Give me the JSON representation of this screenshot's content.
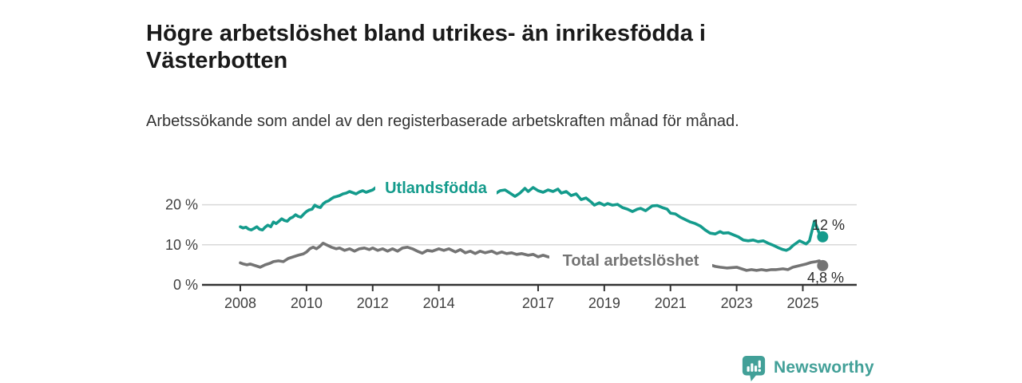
{
  "header": {
    "title": "Högre arbetslöshet bland utrikes- än inrikesfödda i Västerbotten",
    "subtitle": "Arbetssökande som andel av den registerbaserade arbetskraften månad för månad."
  },
  "branding": {
    "name": "Newsworthy",
    "logo_icon": "chart-speech-bubble-icon",
    "brand_color": "#42a098"
  },
  "chart_data": {
    "type": "line",
    "title": "",
    "xlabel": "",
    "ylabel": "",
    "unit": "%",
    "grid": "horizontal",
    "x_axis": {
      "range": [
        2007.8,
        2026.6
      ],
      "ticks": [
        2008,
        2010,
        2012,
        2014,
        2017,
        2019,
        2021,
        2023,
        2025
      ]
    },
    "y_axis": {
      "range": [
        0,
        28
      ],
      "ticks": [
        0,
        10,
        20
      ],
      "tick_suffix": " %"
    },
    "colors": {
      "gridline": "#d8d8d8",
      "axis": "#333333",
      "axis_text": "#404040",
      "annotation_text": "#2b2b2b"
    },
    "series": [
      {
        "name": "Utlandsfödda",
        "color": "#149b8c",
        "end_label": "12 %",
        "end_value": 12,
        "points": [
          [
            2008.0,
            14.5
          ],
          [
            2008.08,
            14.2
          ],
          [
            2008.17,
            14.4
          ],
          [
            2008.25,
            13.9
          ],
          [
            2008.33,
            13.7
          ],
          [
            2008.42,
            14.1
          ],
          [
            2008.5,
            14.5
          ],
          [
            2008.58,
            13.9
          ],
          [
            2008.67,
            13.7
          ],
          [
            2008.75,
            14.4
          ],
          [
            2008.83,
            14.9
          ],
          [
            2008.92,
            14.5
          ],
          [
            2009.0,
            15.7
          ],
          [
            2009.08,
            15.3
          ],
          [
            2009.17,
            15.9
          ],
          [
            2009.25,
            16.5
          ],
          [
            2009.33,
            16.1
          ],
          [
            2009.42,
            15.9
          ],
          [
            2009.5,
            16.6
          ],
          [
            2009.58,
            16.9
          ],
          [
            2009.67,
            17.5
          ],
          [
            2009.75,
            17.1
          ],
          [
            2009.83,
            16.9
          ],
          [
            2009.92,
            17.7
          ],
          [
            2010.0,
            18.3
          ],
          [
            2010.08,
            18.7
          ],
          [
            2010.17,
            18.9
          ],
          [
            2010.25,
            19.9
          ],
          [
            2010.33,
            19.5
          ],
          [
            2010.42,
            19.3
          ],
          [
            2010.5,
            20.2
          ],
          [
            2010.58,
            20.7
          ],
          [
            2010.67,
            21.0
          ],
          [
            2010.75,
            21.5
          ],
          [
            2010.83,
            21.9
          ],
          [
            2010.92,
            22.1
          ],
          [
            2011.0,
            22.3
          ],
          [
            2011.1,
            22.7
          ],
          [
            2011.2,
            22.9
          ],
          [
            2011.3,
            23.3
          ],
          [
            2011.4,
            23.0
          ],
          [
            2011.5,
            22.7
          ],
          [
            2011.6,
            23.2
          ],
          [
            2011.7,
            23.5
          ],
          [
            2011.8,
            23.1
          ],
          [
            2011.9,
            23.4
          ],
          [
            2012.0,
            23.7
          ],
          [
            2012.1,
            24.3
          ],
          [
            2012.25,
            24.6
          ],
          [
            2012.4,
            24.2
          ],
          [
            2012.55,
            23.9
          ],
          [
            2012.7,
            24.3
          ],
          [
            2012.85,
            24.7
          ],
          [
            2013.0,
            24.9
          ],
          [
            2013.15,
            24.4
          ],
          [
            2013.3,
            23.9
          ],
          [
            2013.45,
            24.3
          ],
          [
            2013.6,
            23.8
          ],
          [
            2013.75,
            24.1
          ],
          [
            2013.9,
            24.5
          ],
          [
            2014.05,
            24.0
          ],
          [
            2014.2,
            23.6
          ],
          [
            2014.35,
            24.0
          ],
          [
            2014.5,
            23.5
          ],
          [
            2014.65,
            23.9
          ],
          [
            2014.8,
            23.3
          ],
          [
            2014.95,
            23.7
          ],
          [
            2015.1,
            23.2
          ],
          [
            2015.25,
            22.9
          ],
          [
            2015.4,
            23.3
          ],
          [
            2015.55,
            22.8
          ],
          [
            2015.7,
            22.7
          ],
          [
            2015.85,
            23.5
          ],
          [
            2016.0,
            23.7
          ],
          [
            2016.15,
            22.9
          ],
          [
            2016.3,
            22.1
          ],
          [
            2016.45,
            22.9
          ],
          [
            2016.6,
            24.1
          ],
          [
            2016.7,
            23.3
          ],
          [
            2016.85,
            24.3
          ],
          [
            2017.0,
            23.5
          ],
          [
            2017.15,
            23.1
          ],
          [
            2017.3,
            23.7
          ],
          [
            2017.45,
            23.3
          ],
          [
            2017.6,
            23.9
          ],
          [
            2017.7,
            22.9
          ],
          [
            2017.85,
            23.3
          ],
          [
            2018.0,
            22.3
          ],
          [
            2018.15,
            22.7
          ],
          [
            2018.3,
            21.3
          ],
          [
            2018.45,
            21.7
          ],
          [
            2018.6,
            20.7
          ],
          [
            2018.7,
            19.9
          ],
          [
            2018.85,
            20.5
          ],
          [
            2019.0,
            19.9
          ],
          [
            2019.1,
            20.3
          ],
          [
            2019.25,
            19.9
          ],
          [
            2019.4,
            20.1
          ],
          [
            2019.55,
            19.3
          ],
          [
            2019.7,
            18.9
          ],
          [
            2019.85,
            18.3
          ],
          [
            2020.0,
            18.9
          ],
          [
            2020.1,
            19.1
          ],
          [
            2020.25,
            18.5
          ],
          [
            2020.45,
            19.7
          ],
          [
            2020.6,
            19.8
          ],
          [
            2020.75,
            19.3
          ],
          [
            2020.9,
            18.9
          ],
          [
            2021.0,
            17.9
          ],
          [
            2021.15,
            17.7
          ],
          [
            2021.3,
            16.9
          ],
          [
            2021.45,
            16.3
          ],
          [
            2021.6,
            15.7
          ],
          [
            2021.75,
            15.3
          ],
          [
            2021.9,
            14.7
          ],
          [
            2022.05,
            13.7
          ],
          [
            2022.2,
            12.9
          ],
          [
            2022.35,
            12.7
          ],
          [
            2022.5,
            13.3
          ],
          [
            2022.6,
            12.9
          ],
          [
            2022.75,
            13.0
          ],
          [
            2022.9,
            12.5
          ],
          [
            2023.05,
            12.0
          ],
          [
            2023.2,
            11.2
          ],
          [
            2023.35,
            11.0
          ],
          [
            2023.5,
            11.2
          ],
          [
            2023.65,
            10.8
          ],
          [
            2023.8,
            11.0
          ],
          [
            2023.95,
            10.4
          ],
          [
            2024.1,
            9.9
          ],
          [
            2024.25,
            9.3
          ],
          [
            2024.4,
            8.8
          ],
          [
            2024.5,
            8.6
          ],
          [
            2024.6,
            9.0
          ],
          [
            2024.7,
            9.8
          ],
          [
            2024.8,
            10.4
          ],
          [
            2024.9,
            11.0
          ],
          [
            2025.0,
            10.6
          ],
          [
            2025.1,
            10.2
          ],
          [
            2025.2,
            11.0
          ],
          [
            2025.35,
            15.9
          ],
          [
            2025.5,
            12.8
          ],
          [
            2025.6,
            12.0
          ]
        ]
      },
      {
        "name": "Total arbetslöshet",
        "color": "#747474",
        "end_label": "4,8 %",
        "end_value": 4.8,
        "points": [
          [
            2008.0,
            5.5
          ],
          [
            2008.1,
            5.2
          ],
          [
            2008.2,
            5.0
          ],
          [
            2008.3,
            5.2
          ],
          [
            2008.45,
            4.8
          ],
          [
            2008.6,
            4.4
          ],
          [
            2008.75,
            5.0
          ],
          [
            2008.9,
            5.4
          ],
          [
            2009.0,
            5.8
          ],
          [
            2009.15,
            6.0
          ],
          [
            2009.3,
            5.8
          ],
          [
            2009.45,
            6.6
          ],
          [
            2009.6,
            7.0
          ],
          [
            2009.75,
            7.4
          ],
          [
            2009.9,
            7.7
          ],
          [
            2010.0,
            8.2
          ],
          [
            2010.1,
            9.0
          ],
          [
            2010.2,
            9.4
          ],
          [
            2010.3,
            9.0
          ],
          [
            2010.4,
            9.6
          ],
          [
            2010.5,
            10.4
          ],
          [
            2010.6,
            10.0
          ],
          [
            2010.75,
            9.4
          ],
          [
            2010.9,
            9.0
          ],
          [
            2011.0,
            9.2
          ],
          [
            2011.15,
            8.6
          ],
          [
            2011.3,
            9.0
          ],
          [
            2011.45,
            8.4
          ],
          [
            2011.6,
            9.0
          ],
          [
            2011.75,
            9.2
          ],
          [
            2011.9,
            8.8
          ],
          [
            2012.0,
            9.2
          ],
          [
            2012.15,
            8.6
          ],
          [
            2012.3,
            9.0
          ],
          [
            2012.45,
            8.4
          ],
          [
            2012.6,
            9.0
          ],
          [
            2012.75,
            8.4
          ],
          [
            2012.9,
            9.2
          ],
          [
            2013.05,
            9.4
          ],
          [
            2013.2,
            9.0
          ],
          [
            2013.35,
            8.4
          ],
          [
            2013.5,
            7.9
          ],
          [
            2013.65,
            8.6
          ],
          [
            2013.8,
            8.4
          ],
          [
            2014.0,
            9.0
          ],
          [
            2014.15,
            8.6
          ],
          [
            2014.3,
            9.0
          ],
          [
            2014.5,
            8.2
          ],
          [
            2014.65,
            8.8
          ],
          [
            2014.8,
            8.0
          ],
          [
            2014.95,
            8.4
          ],
          [
            2015.1,
            7.8
          ],
          [
            2015.25,
            8.4
          ],
          [
            2015.4,
            8.0
          ],
          [
            2015.6,
            8.4
          ],
          [
            2015.75,
            7.8
          ],
          [
            2015.9,
            8.2
          ],
          [
            2016.05,
            7.8
          ],
          [
            2016.2,
            8.0
          ],
          [
            2016.35,
            7.6
          ],
          [
            2016.5,
            7.8
          ],
          [
            2016.7,
            7.4
          ],
          [
            2016.85,
            7.6
          ],
          [
            2017.0,
            7.0
          ],
          [
            2017.15,
            7.4
          ],
          [
            2017.3,
            7.0
          ],
          [
            2017.45,
            6.8
          ],
          [
            2017.7,
            6.6
          ],
          [
            2018.0,
            6.4
          ],
          [
            2018.4,
            6.2
          ],
          [
            2018.8,
            6.1
          ],
          [
            2019.2,
            6.0
          ],
          [
            2019.6,
            6.2
          ],
          [
            2020.0,
            6.6
          ],
          [
            2020.4,
            7.2
          ],
          [
            2020.7,
            7.0
          ],
          [
            2021.0,
            6.6
          ],
          [
            2021.4,
            6.0
          ],
          [
            2021.8,
            5.5
          ],
          [
            2022.0,
            5.2
          ],
          [
            2022.2,
            5.0
          ],
          [
            2022.35,
            4.6
          ],
          [
            2022.5,
            4.4
          ],
          [
            2022.7,
            4.2
          ],
          [
            2023.0,
            4.4
          ],
          [
            2023.15,
            4.0
          ],
          [
            2023.3,
            3.6
          ],
          [
            2023.45,
            3.8
          ],
          [
            2023.6,
            3.6
          ],
          [
            2023.75,
            3.8
          ],
          [
            2023.9,
            3.6
          ],
          [
            2024.05,
            3.8
          ],
          [
            2024.2,
            3.8
          ],
          [
            2024.4,
            4.0
          ],
          [
            2024.55,
            3.8
          ],
          [
            2024.7,
            4.4
          ],
          [
            2024.9,
            4.8
          ],
          [
            2025.1,
            5.2
          ],
          [
            2025.25,
            5.6
          ],
          [
            2025.4,
            5.8
          ],
          [
            2025.5,
            6.0
          ],
          [
            2025.6,
            4.8
          ]
        ]
      }
    ]
  }
}
